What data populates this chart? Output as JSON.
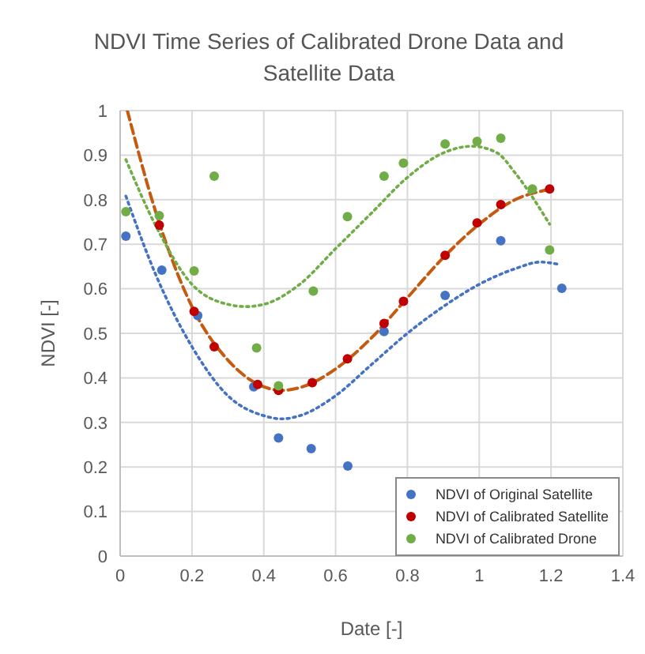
{
  "chart_data": {
    "type": "scatter",
    "title": "NDVI Time Series of Calibrated Drone Data and Satellite Data",
    "xlabel": "Date [-]",
    "ylabel": "NDVI [-]",
    "xlim": [
      0,
      1.4
    ],
    "xticks": [
      0,
      0.2,
      0.4,
      0.6,
      0.8,
      1,
      1.2,
      1.4
    ],
    "ylim": [
      0,
      1
    ],
    "yticks": [
      0,
      0.1,
      0.2,
      0.3,
      0.4,
      0.5,
      0.6,
      0.7,
      0.8,
      0.9,
      1
    ],
    "grid": true,
    "legend": "bottom right",
    "marker": "circle",
    "series": [
      {
        "name": "NDVI of Original Satellite",
        "color": "#4472c4",
        "x": [
          0.016,
          0.116,
          0.216,
          0.372,
          0.441,
          0.532,
          0.634,
          0.735,
          0.905,
          1.06,
          1.23
        ],
        "values": [
          0.718,
          0.642,
          0.54,
          0.38,
          0.265,
          0.241,
          0.202,
          0.504,
          0.585,
          0.708,
          0.601
        ]
      },
      {
        "name": "NDVI of Calibrated Satellite",
        "color": "#c00000",
        "x": [
          0.109,
          0.206,
          0.262,
          0.383,
          0.441,
          0.535,
          0.633,
          0.735,
          0.789,
          0.905,
          0.994,
          1.06,
          1.196
        ],
        "values": [
          0.743,
          0.549,
          0.47,
          0.385,
          0.372,
          0.389,
          0.443,
          0.522,
          0.572,
          0.675,
          0.748,
          0.789,
          0.824
        ]
      },
      {
        "name": "NDVI of Calibrated Drone",
        "color": "#70ad47",
        "x": [
          0.016,
          0.109,
          0.206,
          0.262,
          0.38,
          0.441,
          0.538,
          0.633,
          0.735,
          0.789,
          0.905,
          0.994,
          1.06,
          1.148,
          1.196
        ],
        "values": [
          0.773,
          0.764,
          0.64,
          0.853,
          0.467,
          0.382,
          0.595,
          0.762,
          0.853,
          0.882,
          0.925,
          0.931,
          0.938,
          0.824,
          0.687
        ]
      },
      {
        "type": "line",
        "color": "#4472c4",
        "line_style": "dotted",
        "marker": "none",
        "x": [
          0.016,
          0.1,
          0.2,
          0.3,
          0.4,
          0.45,
          0.5,
          0.6,
          0.7,
          0.8,
          0.9,
          1.0,
          1.1,
          1.17,
          1.22
        ],
        "values": [
          0.808,
          0.63,
          0.47,
          0.36,
          0.315,
          0.308,
          0.315,
          0.36,
          0.43,
          0.5,
          0.56,
          0.61,
          0.645,
          0.66,
          0.655
        ]
      },
      {
        "type": "line",
        "color": "#c55a11",
        "line_style": "dashed",
        "marker": "none",
        "x": [
          0.02,
          0.1,
          0.2,
          0.3,
          0.4,
          0.45,
          0.5,
          0.6,
          0.7,
          0.8,
          0.9,
          1.0,
          1.1,
          1.196
        ],
        "values": [
          1.0,
          0.77,
          0.56,
          0.44,
          0.38,
          0.372,
          0.378,
          0.42,
          0.49,
          0.58,
          0.67,
          0.745,
          0.8,
          0.823
        ]
      },
      {
        "type": "line",
        "color": "#70ad47",
        "line_style": "dotted",
        "marker": "none",
        "x": [
          0.016,
          0.1,
          0.2,
          0.3,
          0.35,
          0.4,
          0.5,
          0.6,
          0.7,
          0.8,
          0.9,
          0.98,
          1.05,
          1.1,
          1.196
        ],
        "values": [
          0.89,
          0.74,
          0.61,
          0.565,
          0.56,
          0.565,
          0.61,
          0.69,
          0.77,
          0.85,
          0.905,
          0.92,
          0.905,
          0.86,
          0.745
        ]
      }
    ]
  }
}
